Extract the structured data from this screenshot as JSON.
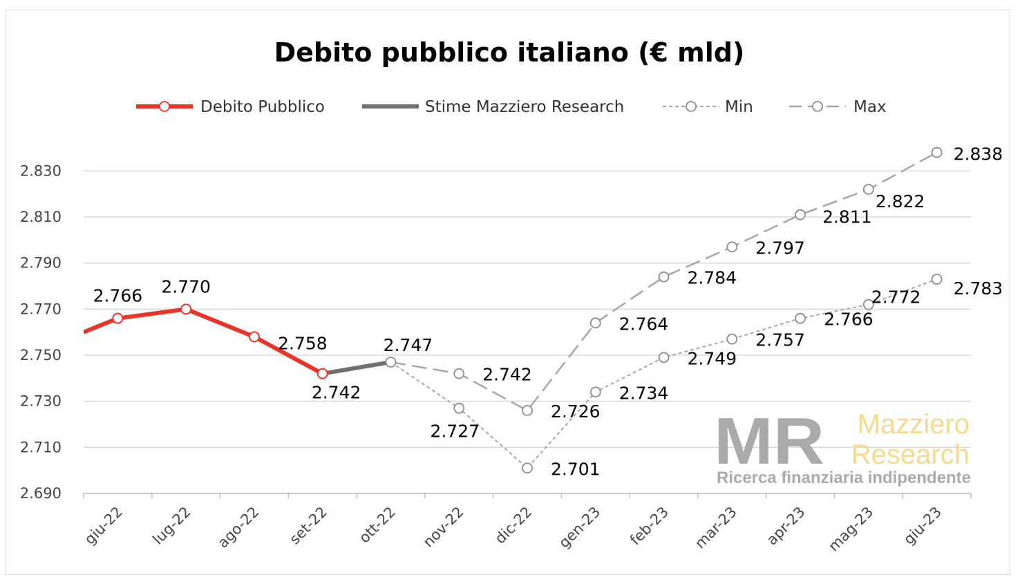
{
  "chart_data": {
    "type": "line",
    "title": "Debito pubblico italiano (€ mld)",
    "categories": [
      "giu-22",
      "lug-22",
      "ago-22",
      "set-22",
      "ott-22",
      "nov-22",
      "dic-22",
      "gen-23",
      "feb-23",
      "mar-23",
      "apr-23",
      "mag-23",
      "giu-23"
    ],
    "ylim": [
      2690,
      2840
    ],
    "yticks": [
      2690,
      2710,
      2730,
      2750,
      2770,
      2790,
      2810,
      2830
    ],
    "ytick_labels": [
      "2.690",
      "2.710",
      "2.730",
      "2.750",
      "2.770",
      "2.790",
      "2.810",
      "2.830"
    ],
    "grid": true,
    "legend_position": "top",
    "series": [
      {
        "name": "Debito Pubblico",
        "color": "#e8352a",
        "style": "solid",
        "leading_value": 2760,
        "values": [
          2766,
          2770,
          2758,
          2742,
          null,
          null,
          null,
          null,
          null,
          null,
          null,
          null,
          null
        ],
        "labels": [
          "2.766",
          "2.770",
          "2.758",
          "2.742",
          "",
          "",
          "",
          "",
          "",
          "",
          "",
          "",
          ""
        ]
      },
      {
        "name": "Stime Mazziero Research",
        "color": "#707070",
        "style": "solid",
        "values": [
          null,
          null,
          null,
          2742,
          2747,
          null,
          null,
          null,
          null,
          null,
          null,
          null,
          null
        ],
        "labels": [
          "",
          "",
          "",
          "",
          "2.747",
          "",
          "",
          "",
          "",
          "",
          "",
          "",
          ""
        ]
      },
      {
        "name": "Min",
        "color": "#a6a6a6",
        "style": "dotted",
        "values": [
          null,
          null,
          null,
          null,
          2747,
          2727,
          2701,
          2734,
          2749,
          2757,
          2766,
          2772,
          2783
        ],
        "labels": [
          "",
          "",
          "",
          "",
          "",
          "2.727",
          "2.701",
          "2.734",
          "2.749",
          "2.757",
          "2.766",
          "2.772",
          "2.783"
        ]
      },
      {
        "name": "Max",
        "color": "#a6a6a6",
        "style": "dashed",
        "values": [
          null,
          null,
          null,
          null,
          2747,
          2742,
          2726,
          2764,
          2784,
          2797,
          2811,
          2822,
          2838
        ],
        "labels": [
          "",
          "",
          "",
          "",
          "",
          "2.742",
          "2.726",
          "2.764",
          "2.784",
          "2.797",
          "2.811",
          "2.822",
          "2.838"
        ]
      }
    ]
  },
  "watermark": {
    "initials": "MR",
    "name_line1": "Mazziero",
    "name_line2": "Research",
    "tagline": "Ricerca finanziaria indipendente"
  }
}
